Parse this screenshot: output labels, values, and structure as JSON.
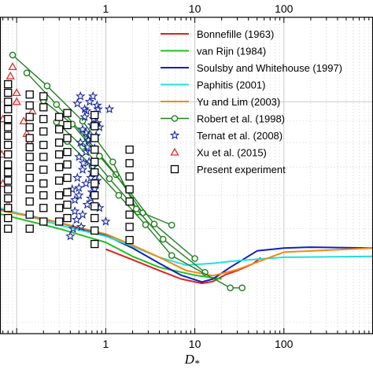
{
  "chart_data": {
    "type": "scatter",
    "x_scale": "log",
    "y_scale": "log",
    "xlim": [
      0.065,
      1000
    ],
    "ylim": [
      0.0282,
      0.1585
    ],
    "xlabel": "D",
    "xlabel_sub": "*",
    "x_tick_labels": [
      {
        "x": 1,
        "label": "1"
      },
      {
        "x": 10,
        "label": "10"
      },
      {
        "x": 100,
        "label": "100"
      }
    ],
    "grid": true,
    "legend_placement": "top-right",
    "series": [
      {
        "name": "Bonnefille (1963)",
        "kind": "line",
        "color": "#e02020",
        "x": [
          1,
          2,
          4,
          7,
          12,
          16,
          22,
          30,
          45,
          55
        ],
        "y": [
          0.0447,
          0.0422,
          0.0398,
          0.038,
          0.0371,
          0.0375,
          0.0389,
          0.0398,
          0.0413,
          0.0427
        ]
      },
      {
        "name": "van Rijn (1984)",
        "kind": "line",
        "color": "#20c020",
        "x": [
          0.065,
          0.3,
          1,
          2,
          4,
          10,
          20
        ],
        "y": [
          0.0542,
          0.05,
          0.0464,
          0.043,
          0.0405,
          0.0388,
          0.038
        ]
      },
      {
        "name": "Soulsby and Whitehouse (1997)",
        "kind": "line",
        "color": "#1020c0",
        "x": [
          0.065,
          0.3,
          1,
          2,
          4,
          7,
          12,
          16,
          25,
          50,
          100,
          200,
          500,
          1000
        ],
        "y": [
          0.0556,
          0.0517,
          0.0482,
          0.045,
          0.0414,
          0.0388,
          0.0374,
          0.038,
          0.0405,
          0.0443,
          0.045,
          0.0452,
          0.0451,
          0.045
        ]
      },
      {
        "name": "Paphitis (2001)",
        "kind": "line",
        "color": "#20e0e0",
        "x": [
          0.065,
          0.3,
          1,
          2,
          4,
          8,
          16,
          30,
          100,
          1000
        ],
        "y": [
          0.056,
          0.051,
          0.048,
          0.0454,
          0.0428,
          0.041,
          0.0414,
          0.042,
          0.0428,
          0.043
        ]
      },
      {
        "name": "Yu and Lim (2003)",
        "kind": "line",
        "color": "#f08a10",
        "x": [
          0.065,
          0.3,
          1,
          2,
          4,
          8,
          16,
          30,
          100,
          1000
        ],
        "y": [
          0.0553,
          0.0517,
          0.0486,
          0.0457,
          0.0428,
          0.0398,
          0.0387,
          0.04,
          0.044,
          0.045
        ]
      },
      {
        "name": "Robert et al. (1998)",
        "kind": "line-marker",
        "marker": "circle",
        "color": "#208020",
        "lines": [
          {
            "x": [
              0.09,
              0.22,
              0.55,
              1.2,
              2.3
            ],
            "y": [
              0.129,
              0.109,
              0.09,
              0.072,
              0.0548
            ]
          },
          {
            "x": [
              0.13,
              0.28,
              0.62,
              1.3,
              2.6,
              5.5
            ],
            "y": [
              0.117,
              0.0985,
              0.0815,
              0.0672,
              0.0545,
              0.051
            ]
          },
          {
            "x": [
              0.2,
              0.42,
              0.85,
              1.8,
              3.5,
              10
            ],
            "y": [
              0.1005,
              0.0885,
              0.0743,
              0.0617,
              0.0513,
              0.0425
            ]
          },
          {
            "x": [
              0.28,
              0.55,
              1.1,
              2.2,
              4.4,
              13
            ],
            "y": [
              0.0895,
              0.0783,
              0.0657,
              0.0557,
              0.0472,
              0.0394
            ]
          },
          {
            "x": [
              0.37,
              0.7,
              1.4,
              2.8,
              5.5,
              25,
              34
            ],
            "y": [
              0.0805,
              0.0703,
              0.06,
              0.0511,
              0.0432,
              0.0362,
              0.0362
            ]
          }
        ]
      },
      {
        "name": "Ternat et al. (2008)",
        "kind": "marker",
        "marker": "star",
        "color": "#1a2aa0",
        "x": [
          0.43,
          0.45,
          0.48,
          0.5,
          0.52,
          0.55,
          0.58,
          0.6,
          0.62,
          0.65,
          0.68,
          0.7,
          0.72,
          0.75,
          0.78,
          0.8,
          0.82,
          0.85,
          0.5,
          0.55,
          0.6,
          0.65,
          0.7,
          0.75,
          0.8,
          0.45,
          0.5,
          0.6,
          0.7,
          0.55,
          0.62,
          0.68,
          0.75,
          0.8,
          0.58,
          0.66,
          0.72,
          0.48,
          0.52,
          0.85,
          1.0,
          1.1,
          0.4,
          0.47,
          0.56,
          0.64,
          0.73,
          0.42,
          0.53,
          0.61
        ],
        "y": [
          0.05,
          0.0585,
          0.066,
          0.074,
          0.08,
          0.086,
          0.092,
          0.0845,
          0.078,
          0.072,
          0.066,
          0.061,
          0.07,
          0.0775,
          0.083,
          0.089,
          0.096,
          0.087,
          0.0625,
          0.069,
          0.076,
          0.083,
          0.088,
          0.093,
          0.098,
          0.055,
          0.06,
          0.064,
          0.068,
          0.054,
          0.057,
          0.059,
          0.062,
          0.065,
          0.096,
          0.1,
          0.103,
          0.099,
          0.103,
          0.056,
          0.052,
          0.096,
          0.048,
          0.0525,
          0.0715,
          0.081,
          0.091,
          0.062,
          0.0505,
          0.095
        ]
      },
      {
        "name": "Xu et al. (2015)",
        "kind": "marker",
        "marker": "triangle",
        "color": "#e03030",
        "x": [
          0.068,
          0.07,
          0.085,
          0.09,
          0.1,
          0.12,
          0.13,
          0.14,
          0.15,
          0.07,
          0.08,
          0.1
        ],
        "y": [
          0.075,
          0.091,
          0.115,
          0.121,
          0.1,
          0.09,
          0.084,
          0.08,
          0.095,
          0.064,
          0.057,
          0.105
        ]
      },
      {
        "name": "Present experiment",
        "kind": "marker",
        "marker": "square",
        "color": "#000000",
        "columns": [
          {
            "x": 0.08,
            "y": [
              0.05,
              0.053,
              0.056,
              0.059,
              0.062,
              0.065,
              0.068,
              0.071,
              0.075,
              0.079,
              0.083,
              0.087,
              0.091,
              0.096,
              0.1,
              0.105,
              0.11
            ]
          },
          {
            "x": 0.14,
            "y": [
              0.05,
              0.054,
              0.058,
              0.062,
              0.066,
              0.07,
              0.074,
              0.078,
              0.082,
              0.087,
              0.092,
              0.098,
              0.104
            ]
          },
          {
            "x": 0.2,
            "y": [
              0.052,
              0.056,
              0.06,
              0.064,
              0.069,
              0.074,
              0.079,
              0.085,
              0.091,
              0.097,
              0.103
            ]
          },
          {
            "x": 0.3,
            "y": [
              0.052,
              0.056,
              0.06,
              0.065,
              0.07,
              0.075,
              0.08,
              0.086,
              0.092
            ]
          },
          {
            "x": 0.37,
            "y": [
              0.053,
              0.057,
              0.061,
              0.066,
              0.071,
              0.076,
              0.082,
              0.088,
              0.094
            ]
          },
          {
            "x": 0.75,
            "y": [
              0.046,
              0.0495,
              0.053,
              0.0565,
              0.06,
              0.064,
              0.068,
              0.072,
              0.077,
              0.082,
              0.0875,
              0.093
            ]
          },
          {
            "x": 1.85,
            "y": [
              0.047,
              0.0505,
              0.054,
              0.058,
              0.062,
              0.0665,
              0.0715,
              0.077
            ]
          }
        ]
      }
    ],
    "legend": [
      {
        "label": "Bonnefille (1963)",
        "style": "line",
        "color": "#e02020"
      },
      {
        "label": "van Rijn (1984)",
        "style": "line",
        "color": "#20c020"
      },
      {
        "label": "Soulsby and Whitehouse (1997)",
        "style": "line",
        "color": "#1020c0"
      },
      {
        "label": "Paphitis (2001)",
        "style": "line",
        "color": "#20e0e0"
      },
      {
        "label": "Yu and Lim (2003)",
        "style": "line",
        "color": "#f08a10"
      },
      {
        "label": "Robert et al. (1998)",
        "style": "line-circle",
        "color": "#208020"
      },
      {
        "label": "Ternat et al. (2008)",
        "style": "star",
        "color": "#1a2aa0"
      },
      {
        "label": "Xu et al. (2015)",
        "style": "triangle",
        "color": "#e03030"
      },
      {
        "label": "Present experiment",
        "style": "square",
        "color": "#000000"
      }
    ]
  }
}
